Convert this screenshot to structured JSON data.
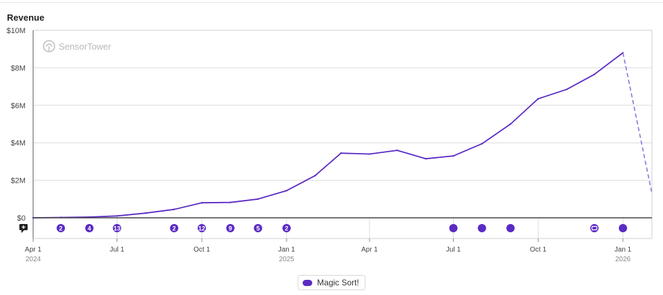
{
  "chart_data": {
    "type": "line",
    "title": "Revenue",
    "watermark": "SensorTower",
    "y_ticks": [
      "$10M",
      "$8M",
      "$6M",
      "$4M",
      "$2M",
      "$0"
    ],
    "y_tick_values": [
      10,
      8,
      6,
      4,
      2,
      0
    ],
    "ylim": [
      0,
      10
    ],
    "y_unit": "$M",
    "x_ticks": [
      {
        "label": "Apr 1",
        "year": "2024",
        "date": "2024-04-01"
      },
      {
        "label": "Jul 1",
        "year": "",
        "date": "2024-07-01"
      },
      {
        "label": "Oct 1",
        "year": "",
        "date": "2024-10-01"
      },
      {
        "label": "Jan 1",
        "year": "2025",
        "date": "2025-01-01"
      },
      {
        "label": "Apr 1",
        "year": "",
        "date": "2025-04-01"
      },
      {
        "label": "Jul 1",
        "year": "",
        "date": "2025-07-01"
      },
      {
        "label": "Oct 1",
        "year": "",
        "date": "2025-10-01"
      },
      {
        "label": "Jan 1",
        "year": "2026",
        "date": "2026-01-01"
      }
    ],
    "grid": true,
    "legend_position": "bottom-center",
    "series": [
      {
        "name": "Magic Sort!",
        "color": "#5b2bc4",
        "x": [
          "2024-04-01",
          "2024-05-01",
          "2024-06-01",
          "2024-07-01",
          "2024-08-01",
          "2024-09-01",
          "2024-10-01",
          "2024-11-01",
          "2024-12-01",
          "2025-01-01",
          "2025-02-01",
          "2025-03-01",
          "2025-04-01",
          "2025-05-01",
          "2025-06-01",
          "2025-07-01",
          "2025-08-01",
          "2025-09-01",
          "2025-10-01",
          "2025-11-01",
          "2025-12-01",
          "2026-01-01"
        ],
        "values": [
          0.0,
          0.02,
          0.04,
          0.1,
          0.25,
          0.45,
          0.8,
          0.82,
          1.0,
          1.45,
          2.25,
          3.45,
          3.4,
          3.6,
          3.15,
          3.3,
          3.95,
          5.0,
          6.35,
          6.85,
          7.65,
          8.8
        ],
        "projection": {
          "x": [
            "2026-01-01",
            "2026-02-01"
          ],
          "values": [
            8.8,
            1.4
          ]
        }
      }
    ],
    "events": [
      {
        "date": "2024-04-01",
        "type": "comment-icon",
        "label": ""
      },
      {
        "date": "2024-05-01",
        "type": "count",
        "label": "2"
      },
      {
        "date": "2024-06-01",
        "type": "count",
        "label": "4"
      },
      {
        "date": "2024-07-01",
        "type": "count",
        "label": "13"
      },
      {
        "date": "2024-09-01",
        "type": "count",
        "label": "2"
      },
      {
        "date": "2024-10-01",
        "type": "count",
        "label": "12"
      },
      {
        "date": "2024-11-01",
        "type": "count",
        "label": "9"
      },
      {
        "date": "2024-12-01",
        "type": "count",
        "label": "5"
      },
      {
        "date": "2025-01-01",
        "type": "count",
        "label": "2"
      },
      {
        "date": "2025-07-01",
        "type": "dot",
        "label": ""
      },
      {
        "date": "2025-08-01",
        "type": "dot",
        "label": ""
      },
      {
        "date": "2025-09-01",
        "type": "dot",
        "label": ""
      },
      {
        "date": "2025-12-01",
        "type": "ticket-icon",
        "label": ""
      },
      {
        "date": "2026-01-01",
        "type": "dot",
        "label": ""
      }
    ]
  }
}
